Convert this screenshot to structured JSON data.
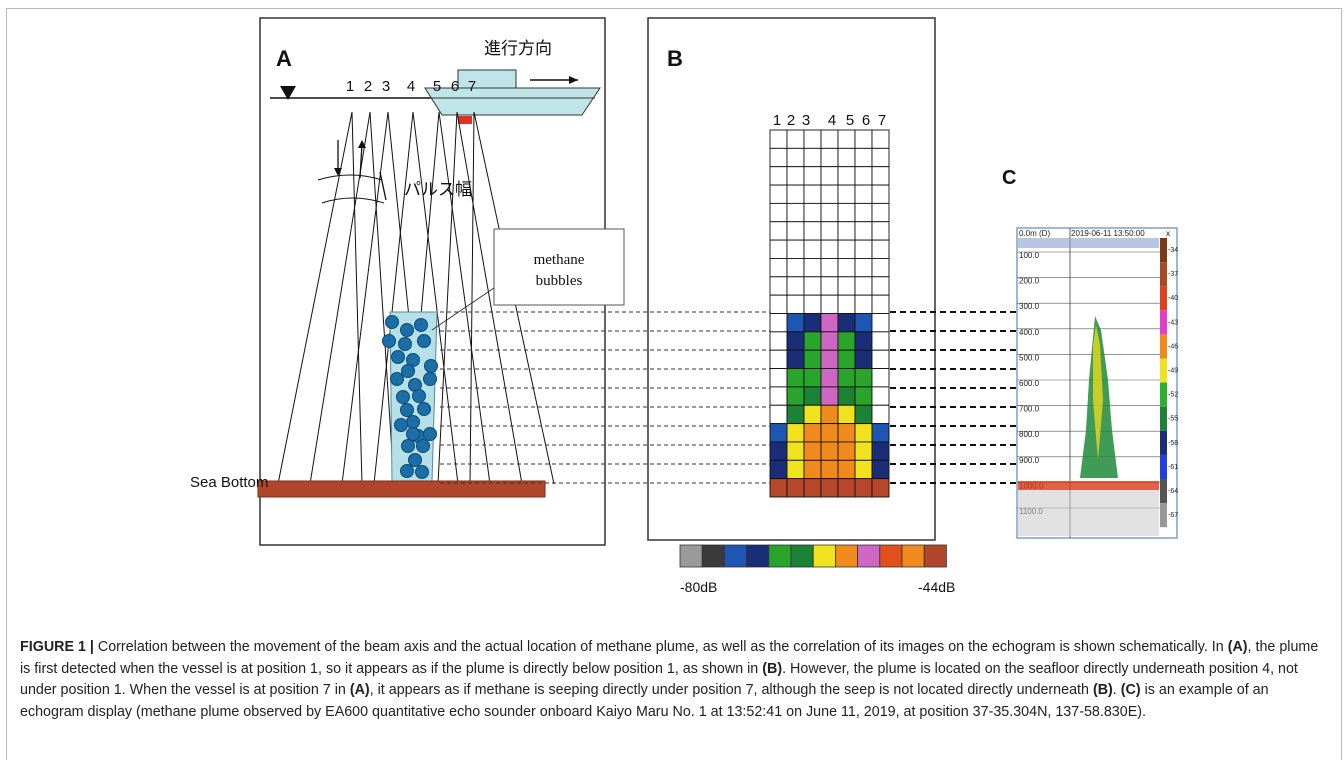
{
  "panel_a": {
    "label": "A",
    "direction": "進行方向",
    "beams": [
      "1",
      "2",
      "3",
      "4",
      "5",
      "6",
      "7"
    ],
    "pulse_width": "パルス幅",
    "callout": [
      "methane",
      "bubbles"
    ],
    "sea_bottom": "Sea Bottom"
  },
  "panel_b": {
    "label": "B",
    "columns": [
      "1",
      "2",
      "3",
      "4",
      "5",
      "6",
      "7"
    ],
    "scale_min": "-80dB",
    "scale_max": "-44dB"
  },
  "panel_c": {
    "label": "C",
    "header": "0.0m (D)",
    "timestamp": "2019-06-11 13:50:00",
    "close": "x",
    "depths": [
      "100.0",
      "200.0",
      "300.0",
      "400.0",
      "500.0",
      "600.0",
      "700.0",
      "800.0",
      "900.0",
      "1000.0",
      "1100.0"
    ],
    "scale": [
      "-34",
      "-37",
      "-40",
      "-43",
      "-46",
      "-49",
      "-52",
      "-55",
      "-58",
      "-61",
      "-64",
      "-67"
    ]
  },
  "caption": {
    "segments": [
      {
        "text": "FIGURE 1 |",
        "bold": true
      },
      {
        "text": " Correlation between the movement of the beam axis and the actual location of methane plume, as well as the correlation of its images on the echogram is shown schematically. In ",
        "bold": false
      },
      {
        "text": "(A)",
        "bold": true
      },
      {
        "text": ", the plume is first detected when the vessel is at position 1, so it appears as if the plume is directly below position 1, as shown in ",
        "bold": false
      },
      {
        "text": "(B)",
        "bold": true
      },
      {
        "text": ". However, the plume is located on the seafloor directly underneath position 4, not under position 1. When the vessel is at position 7 in ",
        "bold": false
      },
      {
        "text": "(A)",
        "bold": true
      },
      {
        "text": ", it appears as if methane is seeping directly under position 7, although the seep is not located directly underneath ",
        "bold": false
      },
      {
        "text": "(B)",
        "bold": true
      },
      {
        "text": ". ",
        "bold": false
      },
      {
        "text": "(C)",
        "bold": true
      },
      {
        "text": " is an example of an echogram display (methane plume observed by EA600 quantitative echo sounder onboard Kaiyo Maru No. 1 at 13:52:41 on June 11, 2019, at position 37-35.304N, 137-58.830E).",
        "bold": false
      }
    ]
  }
}
